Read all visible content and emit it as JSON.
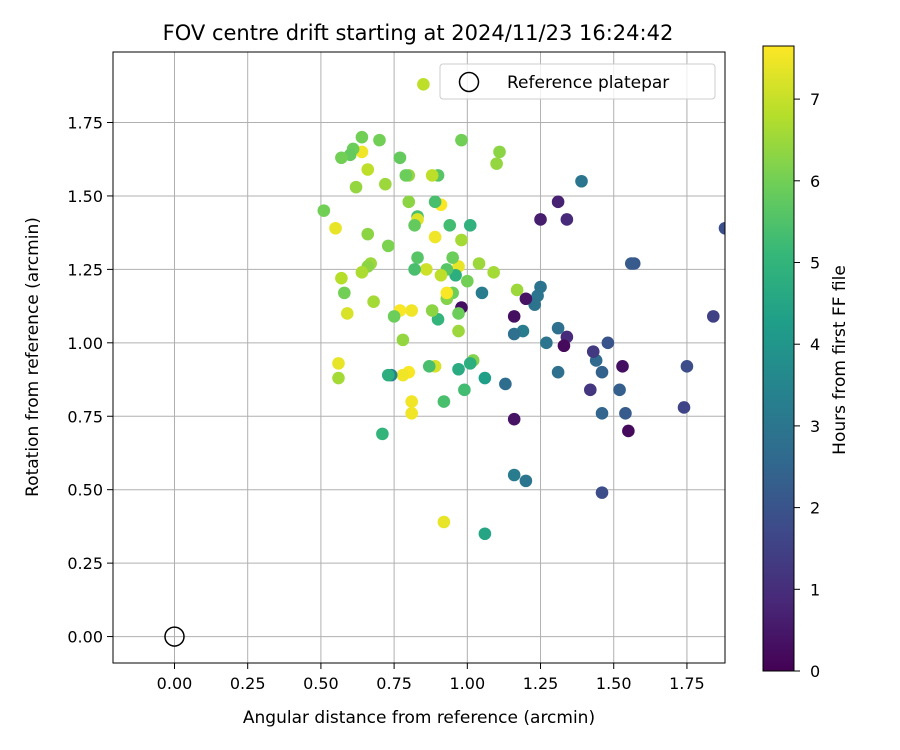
{
  "chart_data": {
    "type": "scatter",
    "title": "FOV centre drift starting at 2024/11/23 16:24:42",
    "xlabel": "Angular distance from reference (arcmin)",
    "ylabel": "Rotation from reference (arcmin)",
    "xlim": [
      -0.21,
      1.88
    ],
    "ylim": [
      -0.09,
      1.99
    ],
    "x_ticks": [
      "0.00",
      "0.25",
      "0.50",
      "0.75",
      "1.00",
      "1.25",
      "1.50",
      "1.75"
    ],
    "y_ticks": [
      "0.00",
      "0.25",
      "0.50",
      "0.75",
      "1.00",
      "1.25",
      "1.50",
      "1.75"
    ],
    "grid": true,
    "legend": {
      "placement": "top-right",
      "entries": [
        "Reference platepar"
      ]
    },
    "reference_point": {
      "x": 0.0,
      "y": 0.0,
      "label": "Reference platepar"
    },
    "colorbar": {
      "label": "Hours from first FF file",
      "min": 0,
      "max": 7.65,
      "ticks": [
        "0",
        "1",
        "2",
        "3",
        "4",
        "5",
        "6",
        "7"
      ],
      "colormap": [
        "#440154",
        "#482878",
        "#3e4989",
        "#31688e",
        "#26828e",
        "#1f9e89",
        "#35b779",
        "#6ece58",
        "#b5de2b",
        "#fde725"
      ]
    },
    "series": [
      {
        "values": [
          {
            "x": 1.88,
            "y": 1.39,
            "c": 1.9
          },
          {
            "x": 1.84,
            "y": 1.09,
            "c": 1.5
          },
          {
            "x": 1.75,
            "y": 0.92,
            "c": 1.8
          },
          {
            "x": 1.74,
            "y": 0.78,
            "c": 1.6
          },
          {
            "x": 1.57,
            "y": 1.27,
            "c": 2.1
          },
          {
            "x": 1.56,
            "y": 1.27,
            "c": 2.2
          },
          {
            "x": 1.55,
            "y": 0.7,
            "c": 0.2
          },
          {
            "x": 1.54,
            "y": 0.76,
            "c": 2.2
          },
          {
            "x": 1.53,
            "y": 0.92,
            "c": 0.3
          },
          {
            "x": 1.52,
            "y": 0.84,
            "c": 2.3
          },
          {
            "x": 1.48,
            "y": 1.0,
            "c": 2.0
          },
          {
            "x": 1.46,
            "y": 0.49,
            "c": 1.8
          },
          {
            "x": 1.46,
            "y": 0.76,
            "c": 2.5
          },
          {
            "x": 1.46,
            "y": 0.9,
            "c": 2.4
          },
          {
            "x": 1.44,
            "y": 0.94,
            "c": 2.6
          },
          {
            "x": 1.43,
            "y": 0.97,
            "c": 1.3
          },
          {
            "x": 1.42,
            "y": 0.84,
            "c": 1.2
          },
          {
            "x": 1.39,
            "y": 1.55,
            "c": 3.0
          },
          {
            "x": 1.34,
            "y": 1.42,
            "c": 0.9
          },
          {
            "x": 1.34,
            "y": 1.02,
            "c": 0.9
          },
          {
            "x": 1.33,
            "y": 0.99,
            "c": 0.2
          },
          {
            "x": 1.31,
            "y": 1.48,
            "c": 0.7
          },
          {
            "x": 1.31,
            "y": 1.05,
            "c": 2.8
          },
          {
            "x": 1.31,
            "y": 0.9,
            "c": 2.8
          },
          {
            "x": 1.27,
            "y": 1.0,
            "c": 3.0
          },
          {
            "x": 1.25,
            "y": 1.42,
            "c": 0.6
          },
          {
            "x": 1.25,
            "y": 1.19,
            "c": 2.9
          },
          {
            "x": 1.24,
            "y": 1.16,
            "c": 3.0
          },
          {
            "x": 1.23,
            "y": 1.13,
            "c": 2.9
          },
          {
            "x": 1.2,
            "y": 1.15,
            "c": 0.4
          },
          {
            "x": 1.2,
            "y": 0.53,
            "c": 3.0
          },
          {
            "x": 1.19,
            "y": 1.04,
            "c": 3.2
          },
          {
            "x": 1.16,
            "y": 1.09,
            "c": 0.3
          },
          {
            "x": 1.16,
            "y": 1.03,
            "c": 2.8
          },
          {
            "x": 1.16,
            "y": 0.74,
            "c": 0.4
          },
          {
            "x": 1.16,
            "y": 0.55,
            "c": 3.2
          },
          {
            "x": 1.17,
            "y": 1.18,
            "c": 6.5
          },
          {
            "x": 1.13,
            "y": 0.86,
            "c": 2.7
          },
          {
            "x": 1.11,
            "y": 1.65,
            "c": 6.3
          },
          {
            "x": 1.1,
            "y": 1.61,
            "c": 6.4
          },
          {
            "x": 1.09,
            "y": 1.24,
            "c": 6.6
          },
          {
            "x": 1.06,
            "y": 0.88,
            "c": 4.3
          },
          {
            "x": 1.05,
            "y": 1.17,
            "c": 3.2
          },
          {
            "x": 1.06,
            "y": 0.35,
            "c": 4.5
          },
          {
            "x": 1.04,
            "y": 1.27,
            "c": 6.5
          },
          {
            "x": 1.02,
            "y": 0.94,
            "c": 6.2
          },
          {
            "x": 1.01,
            "y": 0.93,
            "c": 4.8
          },
          {
            "x": 1.01,
            "y": 1.4,
            "c": 4.9
          },
          {
            "x": 1.0,
            "y": 1.21,
            "c": 6.0
          },
          {
            "x": 0.99,
            "y": 0.84,
            "c": 5.3
          },
          {
            "x": 0.98,
            "y": 1.35,
            "c": 6.6
          },
          {
            "x": 0.98,
            "y": 1.69,
            "c": 6.0
          },
          {
            "x": 0.98,
            "y": 1.12,
            "c": 0.3
          },
          {
            "x": 0.97,
            "y": 1.04,
            "c": 6.5
          },
          {
            "x": 0.97,
            "y": 1.1,
            "c": 5.9
          },
          {
            "x": 0.97,
            "y": 1.26,
            "c": 7.4
          },
          {
            "x": 0.97,
            "y": 0.91,
            "c": 4.7
          },
          {
            "x": 0.96,
            "y": 1.23,
            "c": 4.8
          },
          {
            "x": 0.95,
            "y": 1.29,
            "c": 5.9
          },
          {
            "x": 0.95,
            "y": 1.17,
            "c": 5.9
          },
          {
            "x": 0.94,
            "y": 1.4,
            "c": 5.3
          },
          {
            "x": 0.93,
            "y": 1.25,
            "c": 5.6
          },
          {
            "x": 0.93,
            "y": 1.15,
            "c": 6.2
          },
          {
            "x": 0.93,
            "y": 1.17,
            "c": 7.6
          },
          {
            "x": 0.92,
            "y": 0.39,
            "c": 7.4
          },
          {
            "x": 0.92,
            "y": 0.8,
            "c": 5.4
          },
          {
            "x": 0.91,
            "y": 1.47,
            "c": 7.6
          },
          {
            "x": 0.91,
            "y": 1.23,
            "c": 6.9
          },
          {
            "x": 0.9,
            "y": 1.08,
            "c": 5.0
          },
          {
            "x": 0.9,
            "y": 1.57,
            "c": 5.6
          },
          {
            "x": 0.89,
            "y": 1.48,
            "c": 5.4
          },
          {
            "x": 0.89,
            "y": 1.36,
            "c": 7.5
          },
          {
            "x": 0.88,
            "y": 1.57,
            "c": 6.9
          },
          {
            "x": 0.88,
            "y": 1.11,
            "c": 6.3
          },
          {
            "x": 0.89,
            "y": 0.92,
            "c": 7.2
          },
          {
            "x": 0.87,
            "y": 0.92,
            "c": 5.4
          },
          {
            "x": 0.85,
            "y": 1.88,
            "c": 6.9
          },
          {
            "x": 0.86,
            "y": 1.25,
            "c": 7.1
          },
          {
            "x": 0.83,
            "y": 1.29,
            "c": 5.6
          },
          {
            "x": 0.83,
            "y": 1.43,
            "c": 5.4
          },
          {
            "x": 0.83,
            "y": 1.42,
            "c": 7.3
          },
          {
            "x": 0.82,
            "y": 1.4,
            "c": 5.8
          },
          {
            "x": 0.82,
            "y": 1.25,
            "c": 5.4
          },
          {
            "x": 0.81,
            "y": 1.11,
            "c": 7.5
          },
          {
            "x": 0.81,
            "y": 0.8,
            "c": 7.5
          },
          {
            "x": 0.81,
            "y": 0.76,
            "c": 7.5
          },
          {
            "x": 0.8,
            "y": 1.48,
            "c": 6.3
          },
          {
            "x": 0.8,
            "y": 1.57,
            "c": 6.4
          },
          {
            "x": 0.79,
            "y": 1.57,
            "c": 5.9
          },
          {
            "x": 0.8,
            "y": 0.9,
            "c": 7.6
          },
          {
            "x": 0.78,
            "y": 0.89,
            "c": 7.5
          },
          {
            "x": 0.77,
            "y": 1.63,
            "c": 5.8
          },
          {
            "x": 0.77,
            "y": 1.11,
            "c": 7.6
          },
          {
            "x": 0.78,
            "y": 1.01,
            "c": 6.4
          },
          {
            "x": 0.75,
            "y": 1.09,
            "c": 5.9
          },
          {
            "x": 0.74,
            "y": 0.89,
            "c": 3.4
          },
          {
            "x": 0.73,
            "y": 0.89,
            "c": 4.8
          },
          {
            "x": 0.73,
            "y": 1.33,
            "c": 6.1
          },
          {
            "x": 0.72,
            "y": 1.54,
            "c": 6.5
          },
          {
            "x": 0.71,
            "y": 0.69,
            "c": 5.0
          },
          {
            "x": 0.7,
            "y": 1.69,
            "c": 6.0
          },
          {
            "x": 0.68,
            "y": 1.14,
            "c": 6.6
          },
          {
            "x": 0.67,
            "y": 1.27,
            "c": 6.5
          },
          {
            "x": 0.66,
            "y": 1.26,
            "c": 6.3
          },
          {
            "x": 0.66,
            "y": 1.59,
            "c": 6.9
          },
          {
            "x": 0.66,
            "y": 1.37,
            "c": 6.3
          },
          {
            "x": 0.64,
            "y": 1.7,
            "c": 6.0
          },
          {
            "x": 0.64,
            "y": 1.65,
            "c": 7.5
          },
          {
            "x": 0.64,
            "y": 1.24,
            "c": 6.7
          },
          {
            "x": 0.62,
            "y": 1.53,
            "c": 6.4
          },
          {
            "x": 0.61,
            "y": 1.66,
            "c": 5.9
          },
          {
            "x": 0.6,
            "y": 1.64,
            "c": 5.8
          },
          {
            "x": 0.59,
            "y": 1.1,
            "c": 7.2
          },
          {
            "x": 0.58,
            "y": 1.17,
            "c": 6.0
          },
          {
            "x": 0.57,
            "y": 1.63,
            "c": 6.0
          },
          {
            "x": 0.57,
            "y": 1.22,
            "c": 6.8
          },
          {
            "x": 0.56,
            "y": 0.93,
            "c": 7.4
          },
          {
            "x": 0.56,
            "y": 0.88,
            "c": 6.6
          },
          {
            "x": 0.55,
            "y": 1.39,
            "c": 7.4
          },
          {
            "x": 0.51,
            "y": 1.45,
            "c": 6.0
          }
        ]
      }
    ]
  }
}
